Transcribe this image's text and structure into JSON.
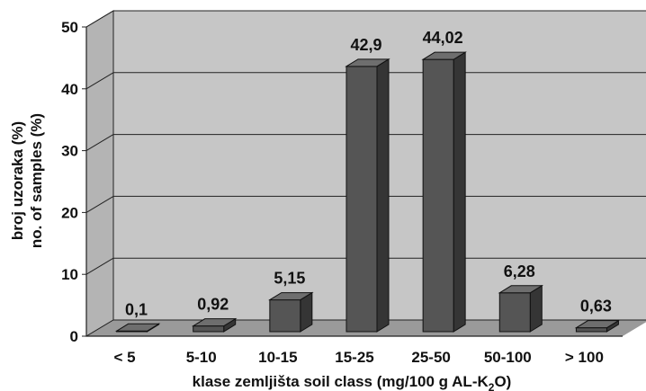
{
  "chart_data": {
    "type": "bar",
    "categories": [
      "< 5",
      "5-10",
      "10-15",
      "15-25",
      "25-50",
      "50-100",
      "> 100"
    ],
    "values": [
      0.1,
      0.92,
      5.15,
      42.9,
      44.02,
      6.28,
      0.63
    ],
    "value_labels": [
      "0,1",
      "0,92",
      "5,15",
      "42,9",
      "44,02",
      "6,28",
      "0,63"
    ],
    "yticks": [
      "0",
      "10",
      "20",
      "30",
      "40",
      "50"
    ],
    "ylim": [
      0,
      50
    ],
    "ylabel_line1": "broj uzoraka (%)",
    "ylabel_line2": "no. of samples (%)",
    "xlabel": {
      "before": "klase zemljišta  soil class  (mg/100 g AL-K",
      "sub": "2",
      "after": "O)"
    },
    "style": "3d",
    "grid": true,
    "colors": {
      "wall": "#c6c6c6",
      "floor": "#9a9a9a",
      "bar_front": "#555555",
      "bar_side": "#353535",
      "bar_top": "#6e6e6e",
      "grid": "#222222"
    }
  }
}
